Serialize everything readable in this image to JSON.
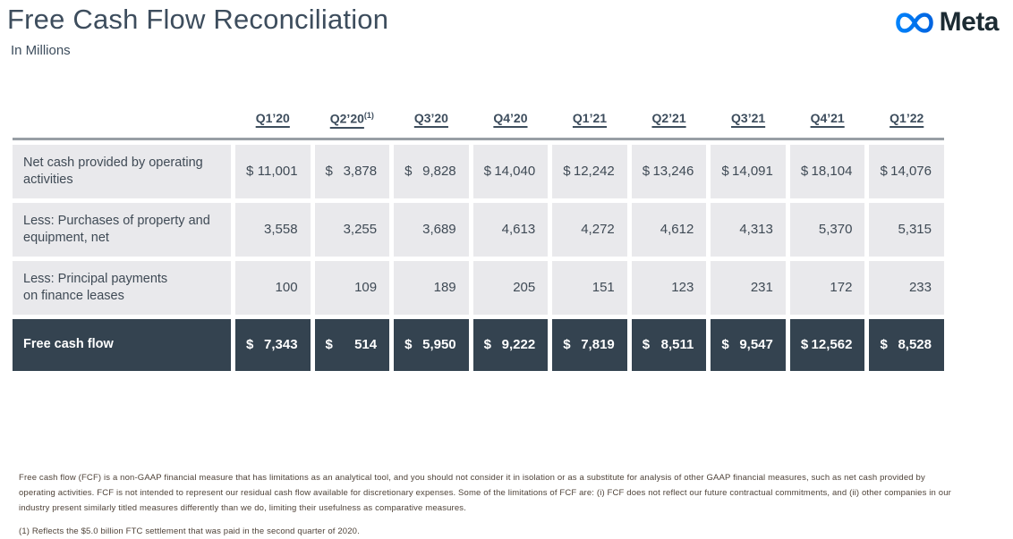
{
  "header": {
    "title": "Free Cash Flow Reconciliation",
    "subtitle": "In Millions",
    "logo_text": "Meta",
    "logo_icon": "meta-infinity-icon"
  },
  "table": {
    "columns": [
      {
        "label": "Q1’20",
        "sup": ""
      },
      {
        "label": "Q2’20",
        "sup": "(1)"
      },
      {
        "label": "Q3’20",
        "sup": ""
      },
      {
        "label": "Q4’20",
        "sup": ""
      },
      {
        "label": "Q1’21",
        "sup": ""
      },
      {
        "label": "Q2’21",
        "sup": ""
      },
      {
        "label": "Q3’21",
        "sup": ""
      },
      {
        "label": "Q4’21",
        "sup": ""
      },
      {
        "label": "Q1’22",
        "sup": ""
      }
    ],
    "rows": [
      {
        "label": "Net cash provided by operating\nactivities",
        "dollar_sign": true,
        "highlight": false,
        "values": [
          "11,001",
          "3,878",
          "9,828",
          "14,040",
          "12,242",
          "13,246",
          "14,091",
          "18,104",
          "14,076"
        ]
      },
      {
        "label": "Less: Purchases of property and\nequipment, net",
        "dollar_sign": false,
        "highlight": false,
        "values": [
          "3,558",
          "3,255",
          "3,689",
          "4,613",
          "4,272",
          "4,612",
          "4,313",
          "5,370",
          "5,315"
        ]
      },
      {
        "label": "Less: Principal payments\non finance leases",
        "dollar_sign": false,
        "highlight": false,
        "values": [
          "100",
          "109",
          "189",
          "205",
          "151",
          "123",
          "231",
          "172",
          "233"
        ]
      },
      {
        "label": "Free cash flow",
        "dollar_sign": true,
        "highlight": true,
        "values": [
          "7,343",
          "514",
          "5,950",
          "9,222",
          "7,819",
          "8,511",
          "9,547",
          "12,562",
          "8,528"
        ]
      }
    ],
    "dollar_symbol": "$"
  },
  "footnotes": {
    "definition": "Free cash flow (FCF) is a non-GAAP financial measure that has limitations as an analytical tool, and you should not consider it in isolation or as a substitute for analysis of other GAAP financial measures, such as net cash provided by operating activities. FCF is not intended to represent our residual cash flow available for discretionary expenses. Some of the limitations of FCF are: (i) FCF does not reflect our future contractual commitments, and (ii) other companies in our industry present similarly titled measures differently than we do, limiting their usefulness as comparative measures.",
    "note1": "(1) Reflects the $5.0 billion FTC settlement that was paid in the second quarter of 2020."
  },
  "colors": {
    "title": "#3d4d5d",
    "logo-blue-start": "#0082fb",
    "logo-blue-end": "#0064e0",
    "logo-text": "#1c2b33",
    "table-top-border": "#989ea5",
    "cell-bg": "#e9e9ec",
    "cell-text": "#3f4a55",
    "highlight-bg": "#344350",
    "highlight-text": "#ffffff",
    "footnote-text": "#4f4339"
  }
}
